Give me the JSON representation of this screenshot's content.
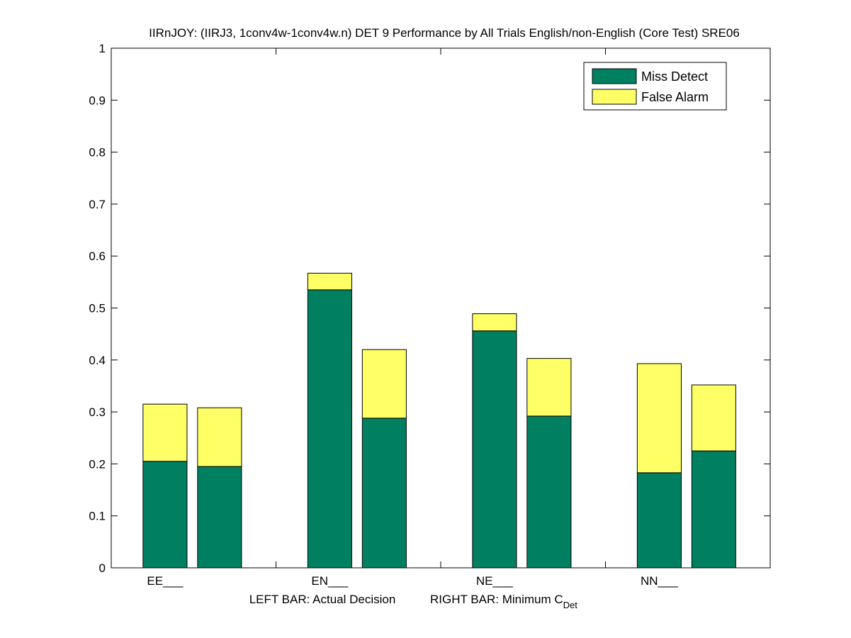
{
  "chart_data": {
    "type": "bar",
    "title": "IIRnJOY: (IIRJ3, 1conv4w-1conv4w.n) DET 9 Performance by All Trials English/non-English (Core Test) SRE06",
    "categories": [
      "EE___",
      "EN___",
      "NE___",
      "NN___"
    ],
    "xlabel": {
      "left": "LEFT BAR: Actual Decision",
      "right": "RIGHT BAR: Minimum C",
      "right_subscript": "Det"
    },
    "ylim": [
      0,
      1
    ],
    "yticks": [
      "0",
      "0.1",
      "0.2",
      "0.3",
      "0.4",
      "0.5",
      "0.6",
      "0.7",
      "0.8",
      "0.9",
      "1"
    ],
    "stacked": true,
    "legend_position": "top-right",
    "series": [
      {
        "name": "Miss Detect",
        "color": "#008060",
        "left_bar": [
          0.205,
          0.535,
          0.456,
          0.183
        ],
        "right_bar": [
          0.195,
          0.288,
          0.292,
          0.225
        ]
      },
      {
        "name": "False Alarm",
        "color": "#ffff66",
        "left_bar": [
          0.11,
          0.032,
          0.033,
          0.21
        ],
        "right_bar": [
          0.113,
          0.132,
          0.111,
          0.127
        ]
      }
    ]
  }
}
